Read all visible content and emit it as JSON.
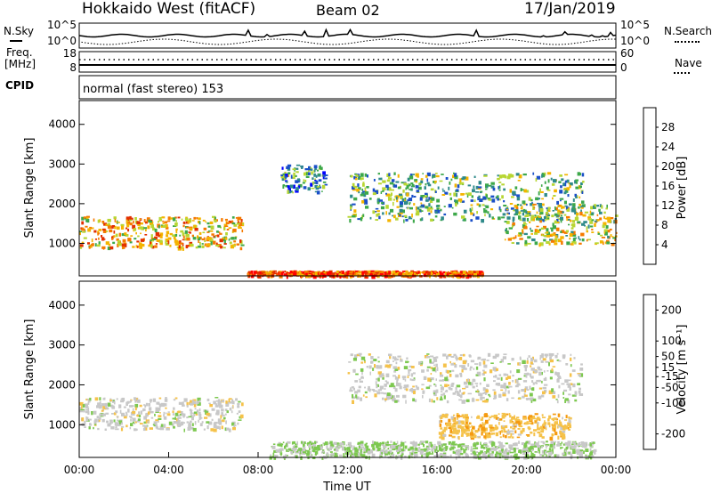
{
  "header": {
    "radar": "Hokkaido West (fitACF)",
    "beam": "Beam 02",
    "date": "17/Jan/2019"
  },
  "noise_panel": {
    "left_label": "N.Sky",
    "right_label": "N.Search",
    "left_top_tick": "10^5",
    "left_bottom_tick": "10^0",
    "right_top_tick": "10^5",
    "right_bottom_tick": "10^0"
  },
  "freq_panel": {
    "left_label_line1": "Freq.",
    "left_label_line2": "[MHz]",
    "left_top_tick": "18",
    "left_bottom_tick": "8",
    "right_label": "Nave",
    "right_top_tick": "60",
    "right_bottom_tick": "0"
  },
  "cpid": {
    "label": "CPID",
    "mode_text": "normal (fast stereo) 153"
  },
  "colors": {
    "power_scale": [
      "#0000ff",
      "#1a4fc8",
      "#2f8a8a",
      "#3da84a",
      "#b8d633",
      "#f4b400",
      "#f57a00",
      "#e23000",
      "#ff0000"
    ],
    "velocity_scale": [
      "#ff0000",
      "#f55a00",
      "#f59a10",
      "#f5c24a",
      "#c8c8c8",
      "#7dc850",
      "#32a83c",
      "#1a4fc8",
      "#2a2ab8"
    ]
  },
  "chart_data": [
    {
      "type": "heatmap",
      "name": "power",
      "ylabel": "Slant Range [km]",
      "yticks": [
        "1000",
        "2000",
        "3000",
        "4000"
      ],
      "ylim": [
        180,
        4600
      ],
      "xlim_hours": [
        0,
        24
      ],
      "colorbar": {
        "label": "Power [dB]",
        "ticks": [
          "4",
          "8",
          "12",
          "16",
          "20",
          "24",
          "28"
        ],
        "range": [
          0,
          32
        ]
      },
      "echo_regions": [
        {
          "t": [
            0,
            7.3
          ],
          "range_km": [
            900,
            1700
          ],
          "power_db": 20
        },
        {
          "t": [
            7.5,
            18
          ],
          "range_km": [
            200,
            320
          ],
          "power_db": 26
        },
        {
          "t": [
            9,
            11
          ],
          "range_km": [
            2300,
            3000
          ],
          "power_db": 10
        },
        {
          "t": [
            12,
            22.5
          ],
          "range_km": [
            1600,
            2800
          ],
          "power_db": 12
        },
        {
          "t": [
            19,
            24
          ],
          "range_km": [
            1000,
            2000
          ],
          "power_db": 16
        }
      ]
    },
    {
      "type": "heatmap",
      "name": "velocity",
      "ylabel": "Slant Range [km]",
      "yticks": [
        "1000",
        "2000",
        "3000",
        "4000"
      ],
      "ylim": [
        180,
        4600
      ],
      "xlim_hours": [
        0,
        24
      ],
      "xlabel": "Time UT",
      "xticks": [
        "00:00",
        "04:00",
        "08:00",
        "12:00",
        "16:00",
        "20:00",
        "00:00"
      ],
      "colorbar": {
        "label": "Velocity [m s⁻¹]",
        "ticks": [
          "-200",
          "-100",
          "-50",
          "-15",
          "15",
          "50",
          "100",
          "200"
        ],
        "range": [
          -250,
          250
        ]
      },
      "echo_regions": [
        {
          "t": [
            0,
            7.3
          ],
          "range_km": [
            900,
            1700
          ],
          "velocity": 0
        },
        {
          "t": [
            8.5,
            23
          ],
          "range_km": [
            200,
            600
          ],
          "velocity": 30
        },
        {
          "t": [
            12,
            22.5
          ],
          "range_km": [
            1600,
            2800
          ],
          "velocity": 0
        },
        {
          "t": [
            16,
            22
          ],
          "range_km": [
            700,
            1300
          ],
          "velocity": -60
        }
      ]
    }
  ]
}
